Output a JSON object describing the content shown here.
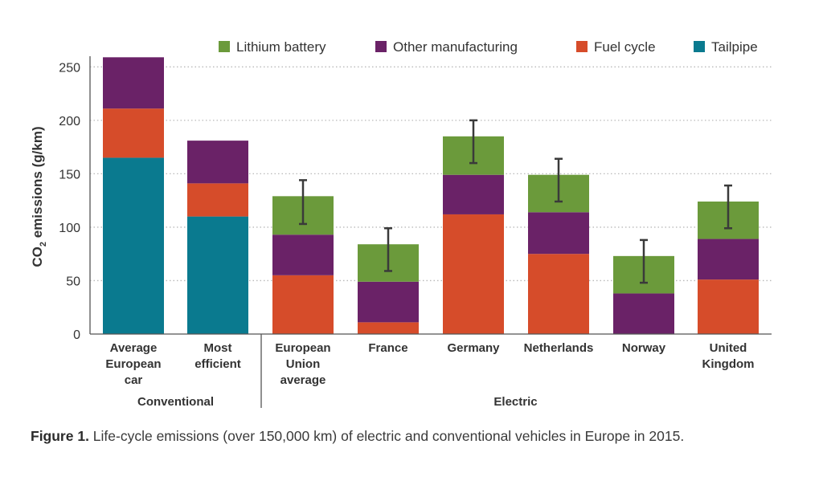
{
  "chart_data": {
    "type": "bar",
    "stacked": true,
    "ylabel": "CO2 emissions (g/km)",
    "ylabel_parts": {
      "pre": "CO",
      "sub": "2",
      "post": " emissions (g/km)"
    },
    "ylim": [
      0,
      260
    ],
    "yticks": [
      0,
      50,
      100,
      150,
      200,
      250
    ],
    "grid": "dotted horizontal",
    "legend_position": "top",
    "categories": [
      [
        "Average",
        "European",
        "car"
      ],
      [
        "Most",
        "efficient"
      ],
      [
        "European",
        "Union",
        "average"
      ],
      [
        "France"
      ],
      [
        "Germany"
      ],
      [
        "Netherlands"
      ],
      [
        "Norway"
      ],
      [
        "United",
        "Kingdom"
      ]
    ],
    "groups": [
      {
        "label": "Conventional",
        "from": 0,
        "to": 1
      },
      {
        "label": "Electric",
        "from": 2,
        "to": 7
      }
    ],
    "series": [
      {
        "name": "Tailpipe",
        "color": "#0a7a8f",
        "values": [
          165,
          110,
          0,
          0,
          0,
          0,
          0,
          0
        ]
      },
      {
        "name": "Fuel cycle",
        "color": "#d64c2a",
        "values": [
          46,
          31,
          55,
          11,
          112,
          75,
          0,
          51
        ]
      },
      {
        "name": "Other manufacturing",
        "color": "#6a2267",
        "values": [
          48,
          40,
          38,
          38,
          37,
          39,
          38,
          38
        ]
      },
      {
        "name": "Lithium battery",
        "color": "#6b9a3b",
        "values": [
          0,
          0,
          36,
          35,
          36,
          35,
          35,
          35
        ]
      }
    ],
    "legend_order": [
      "Lithium battery",
      "Other manufacturing",
      "Fuel cycle",
      "Tailpipe"
    ],
    "error_bars": [
      null,
      null,
      [
        103,
        144
      ],
      [
        59,
        99
      ],
      [
        160,
        200
      ],
      [
        124,
        164
      ],
      [
        48,
        88
      ],
      [
        99,
        139
      ]
    ]
  },
  "caption": {
    "bold": "Figure 1.",
    "text": " Life-cycle emissions (over 150,000 km) of electric and conventional vehicles in Europe in 2015."
  }
}
